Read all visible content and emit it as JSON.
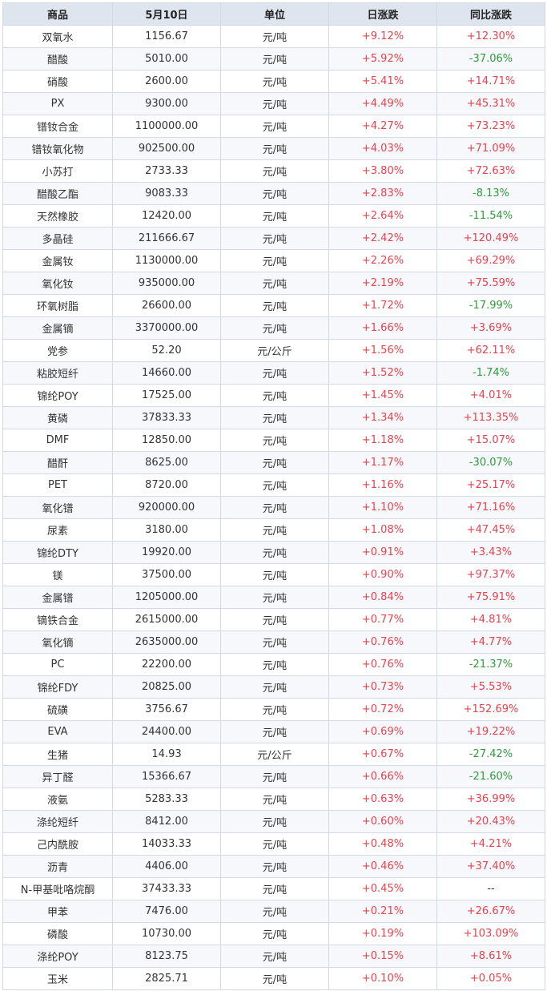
{
  "colors": {
    "up": "#e8414c",
    "down": "#2f9a3c",
    "header_bg": "#dfe5ef"
  },
  "headers": [
    "商品",
    "5月10日",
    "单位",
    "日涨跌",
    "同比涨跌"
  ],
  "rows": [
    [
      "双氧水",
      "1156.67",
      "元/吨",
      "+9.12%",
      "+12.30%"
    ],
    [
      "醋酸",
      "5010.00",
      "元/吨",
      "+5.92%",
      "-37.06%"
    ],
    [
      "硝酸",
      "2600.00",
      "元/吨",
      "+5.41%",
      "+14.71%"
    ],
    [
      "PX",
      "9300.00",
      "元/吨",
      "+4.49%",
      "+45.31%"
    ],
    [
      "镨钕合金",
      "1100000.00",
      "元/吨",
      "+4.27%",
      "+73.23%"
    ],
    [
      "镨钕氧化物",
      "902500.00",
      "元/吨",
      "+4.03%",
      "+71.09%"
    ],
    [
      "小苏打",
      "2733.33",
      "元/吨",
      "+3.80%",
      "+72.63%"
    ],
    [
      "醋酸乙酯",
      "9083.33",
      "元/吨",
      "+2.83%",
      "-8.13%"
    ],
    [
      "天然橡胶",
      "12420.00",
      "元/吨",
      "+2.64%",
      "-11.54%"
    ],
    [
      "多晶硅",
      "211666.67",
      "元/吨",
      "+2.42%",
      "+120.49%"
    ],
    [
      "金属钕",
      "1130000.00",
      "元/吨",
      "+2.26%",
      "+69.29%"
    ],
    [
      "氧化钕",
      "935000.00",
      "元/吨",
      "+2.19%",
      "+75.59%"
    ],
    [
      "环氧树脂",
      "26600.00",
      "元/吨",
      "+1.72%",
      "-17.99%"
    ],
    [
      "金属镝",
      "3370000.00",
      "元/吨",
      "+1.66%",
      "+3.69%"
    ],
    [
      "党参",
      "52.20",
      "元/公斤",
      "+1.56%",
      "+62.11%"
    ],
    [
      "粘胶短纤",
      "14660.00",
      "元/吨",
      "+1.52%",
      "-1.74%"
    ],
    [
      "锦纶POY",
      "17525.00",
      "元/吨",
      "+1.45%",
      "+4.01%"
    ],
    [
      "黄磷",
      "37833.33",
      "元/吨",
      "+1.34%",
      "+113.35%"
    ],
    [
      "DMF",
      "12850.00",
      "元/吨",
      "+1.18%",
      "+15.07%"
    ],
    [
      "醋酐",
      "8625.00",
      "元/吨",
      "+1.17%",
      "-30.07%"
    ],
    [
      "PET",
      "8720.00",
      "元/吨",
      "+1.16%",
      "+25.17%"
    ],
    [
      "氧化镨",
      "920000.00",
      "元/吨",
      "+1.10%",
      "+71.16%"
    ],
    [
      "尿素",
      "3180.00",
      "元/吨",
      "+1.08%",
      "+47.45%"
    ],
    [
      "锦纶DTY",
      "19920.00",
      "元/吨",
      "+0.91%",
      "+3.43%"
    ],
    [
      "镁",
      "37500.00",
      "元/吨",
      "+0.90%",
      "+97.37%"
    ],
    [
      "金属镨",
      "1205000.00",
      "元/吨",
      "+0.84%",
      "+75.91%"
    ],
    [
      "镝铁合金",
      "2615000.00",
      "元/吨",
      "+0.77%",
      "+4.81%"
    ],
    [
      "氧化镝",
      "2635000.00",
      "元/吨",
      "+0.76%",
      "+4.77%"
    ],
    [
      "PC",
      "22200.00",
      "元/吨",
      "+0.76%",
      "-21.37%"
    ],
    [
      "锦纶FDY",
      "20825.00",
      "元/吨",
      "+0.73%",
      "+5.53%"
    ],
    [
      "硫磺",
      "3756.67",
      "元/吨",
      "+0.72%",
      "+152.69%"
    ],
    [
      "EVA",
      "24400.00",
      "元/吨",
      "+0.69%",
      "+19.22%"
    ],
    [
      "生猪",
      "14.93",
      "元/公斤",
      "+0.67%",
      "-27.42%"
    ],
    [
      "异丁醛",
      "15366.67",
      "元/吨",
      "+0.66%",
      "-21.60%"
    ],
    [
      "液氨",
      "5283.33",
      "元/吨",
      "+0.63%",
      "+36.99%"
    ],
    [
      "涤纶短纤",
      "8412.00",
      "元/吨",
      "+0.60%",
      "+20.43%"
    ],
    [
      "己内酰胺",
      "14033.33",
      "元/吨",
      "+0.48%",
      "+4.21%"
    ],
    [
      "沥青",
      "4406.00",
      "元/吨",
      "+0.46%",
      "+37.40%"
    ],
    [
      "N-甲基吡咯烷酮",
      "37433.33",
      "元/吨",
      "+0.45%",
      "--"
    ],
    [
      "甲苯",
      "7476.00",
      "元/吨",
      "+0.21%",
      "+26.67%"
    ],
    [
      "磷酸",
      "10730.00",
      "元/吨",
      "+0.19%",
      "+103.09%"
    ],
    [
      "涤纶POY",
      "8123.75",
      "元/吨",
      "+0.15%",
      "+8.61%"
    ],
    [
      "玉米",
      "2825.71",
      "元/吨",
      "+0.10%",
      "+0.05%"
    ]
  ]
}
